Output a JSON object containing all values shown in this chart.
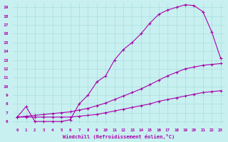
{
  "xlabel": "Windchill (Refroidissement éolien,°C)",
  "bg_color": "#c8f0f0",
  "line_color": "#aa00aa",
  "grid_color": "#aadddd",
  "xlim": [
    -0.5,
    23.5
  ],
  "ylim": [
    5.7,
    19.5
  ],
  "xticks": [
    0,
    1,
    2,
    3,
    4,
    5,
    6,
    7,
    8,
    9,
    10,
    11,
    12,
    13,
    14,
    15,
    16,
    17,
    18,
    19,
    20,
    21,
    22,
    23
  ],
  "yticks": [
    6,
    7,
    8,
    9,
    10,
    11,
    12,
    13,
    14,
    15,
    16,
    17,
    18,
    19
  ],
  "series1_x": [
    0,
    1,
    2,
    3,
    4,
    5,
    6,
    7,
    8,
    9,
    10,
    11,
    12,
    13,
    14,
    15,
    16,
    17,
    18,
    19,
    20,
    21,
    22,
    23
  ],
  "series1_y": [
    6.5,
    7.7,
    6.0,
    6.0,
    6.0,
    6.0,
    6.2,
    8.0,
    9.0,
    10.5,
    11.2,
    13.0,
    14.2,
    15.0,
    16.0,
    17.2,
    18.2,
    18.7,
    19.0,
    19.3,
    19.2,
    18.5,
    16.2,
    13.2
  ],
  "series2_x": [
    0,
    1,
    2,
    3,
    4,
    5,
    6,
    7,
    8,
    9,
    10,
    11,
    12,
    13,
    14,
    15,
    16,
    17,
    18,
    19,
    20,
    21,
    22,
    23
  ],
  "series2_y": [
    6.5,
    6.5,
    6.5,
    6.5,
    6.5,
    6.5,
    6.5,
    6.6,
    6.7,
    6.8,
    7.0,
    7.2,
    7.4,
    7.6,
    7.8,
    8.0,
    8.3,
    8.5,
    8.7,
    8.9,
    9.1,
    9.3,
    9.4,
    9.5
  ],
  "series3_x": [
    0,
    1,
    2,
    3,
    4,
    5,
    6,
    7,
    8,
    9,
    10,
    11,
    12,
    13,
    14,
    15,
    16,
    17,
    18,
    19,
    20,
    21,
    22,
    23
  ],
  "series3_y": [
    6.5,
    6.6,
    6.7,
    6.8,
    6.9,
    7.0,
    7.1,
    7.3,
    7.5,
    7.8,
    8.1,
    8.5,
    8.9,
    9.3,
    9.7,
    10.2,
    10.7,
    11.2,
    11.6,
    12.0,
    12.2,
    12.4,
    12.5,
    12.6
  ],
  "marker": "+"
}
